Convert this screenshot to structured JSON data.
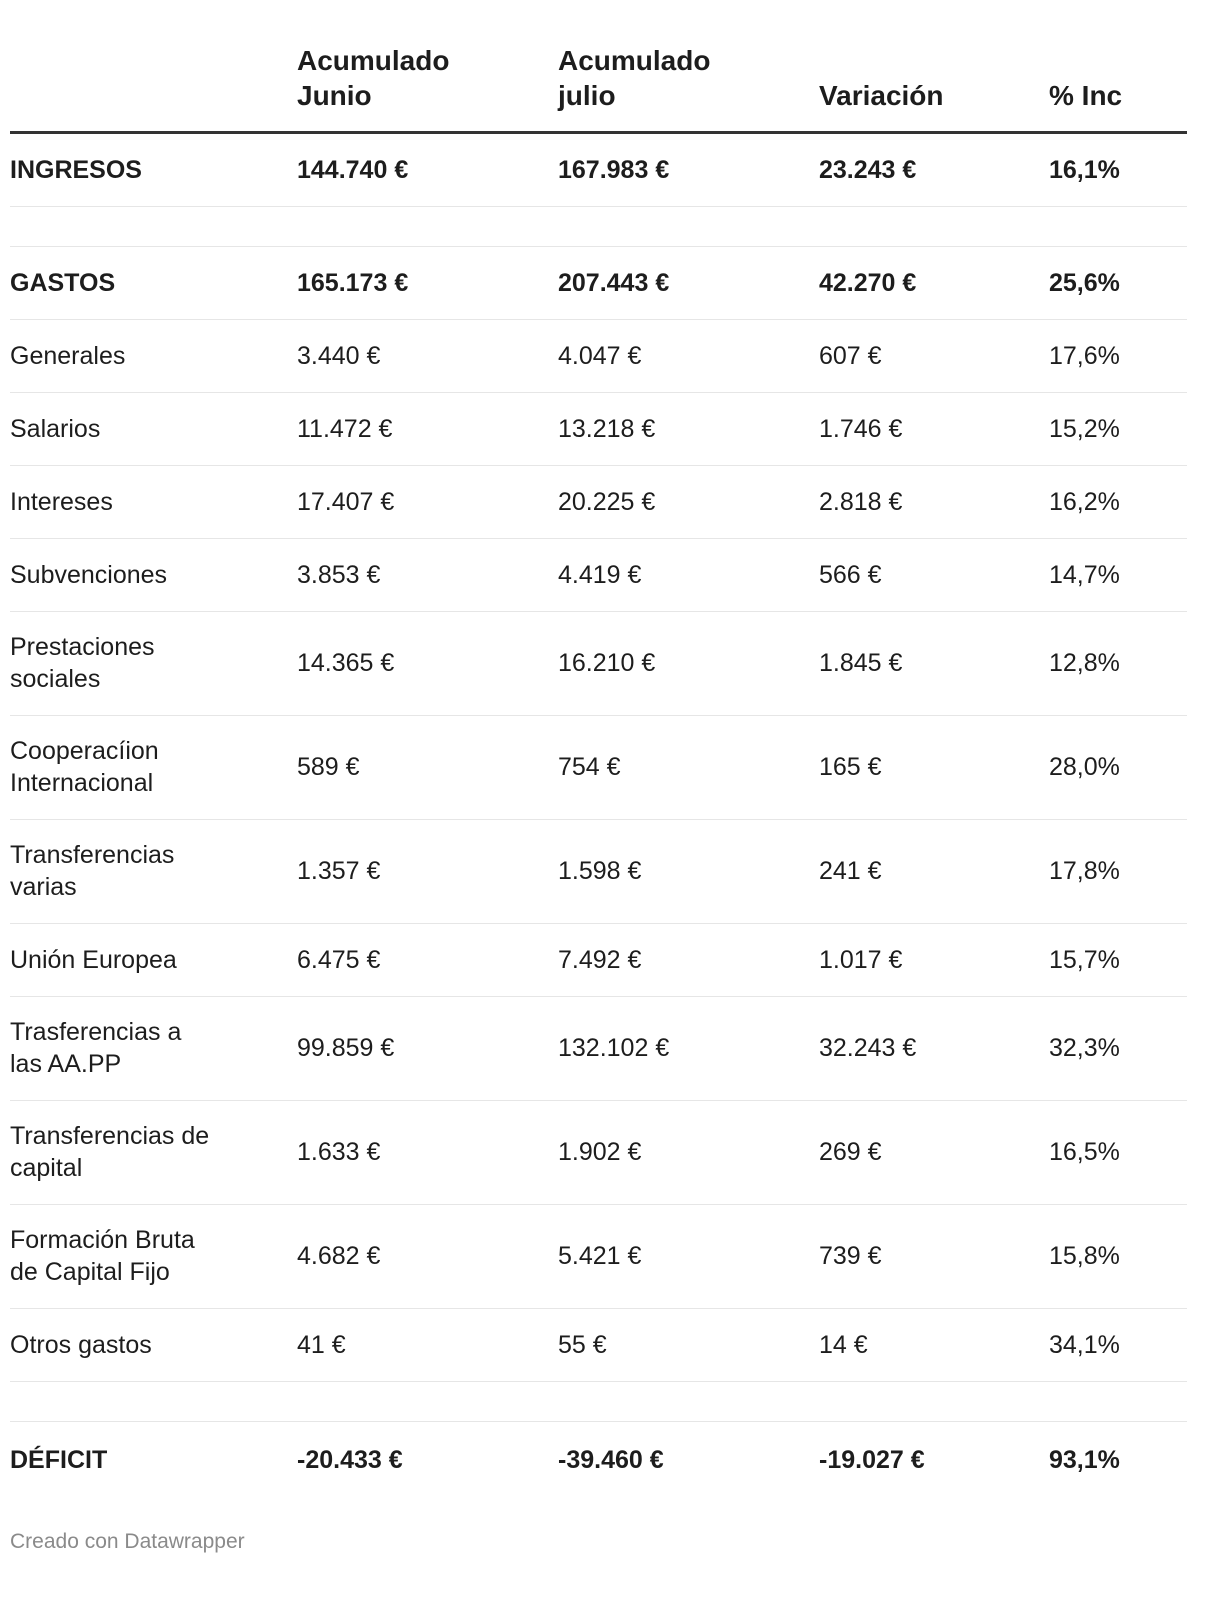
{
  "table": {
    "headers": {
      "col0": "",
      "col1_line1": "Acumulado",
      "col1_line2": "Junio",
      "col2_line1": "Acumulado",
      "col2_line2": "julio",
      "col3": "Variación",
      "col4": "% Inc"
    },
    "rows": [
      {
        "label": "INGRESOS",
        "junio": "144.740 €",
        "julio": "167.983 €",
        "variacion": "23.243 €",
        "inc": "16,1%"
      },
      {
        "label": "GASTOS",
        "junio": "165.173 €",
        "julio": "207.443 €",
        "variacion": "42.270 €",
        "inc": "25,6%"
      },
      {
        "label": "Generales",
        "junio": "3.440 €",
        "julio": "4.047 €",
        "variacion": "607 €",
        "inc": "17,6%"
      },
      {
        "label": "Salarios",
        "junio": "11.472 €",
        "julio": "13.218 €",
        "variacion": "1.746 €",
        "inc": "15,2%"
      },
      {
        "label": "Intereses",
        "junio": "17.407 €",
        "julio": "20.225 €",
        "variacion": "2.818 €",
        "inc": "16,2%"
      },
      {
        "label": "Subvenciones",
        "junio": "3.853 €",
        "julio": "4.419 €",
        "variacion": "566 €",
        "inc": "14,7%"
      },
      {
        "label_line1": "Prestaciones",
        "label_line2": "sociales",
        "junio": "14.365 €",
        "julio": "16.210 €",
        "variacion": "1.845 €",
        "inc": "12,8%"
      },
      {
        "label_line1": "Cooperacíion",
        "label_line2": "Internacional",
        "junio": "589 €",
        "julio": "754 €",
        "variacion": "165 €",
        "inc": "28,0%"
      },
      {
        "label_line1": "Transferencias",
        "label_line2": "varias",
        "junio": "1.357 €",
        "julio": "1.598 €",
        "variacion": "241 €",
        "inc": "17,8%"
      },
      {
        "label": "Unión Europea",
        "junio": "6.475 €",
        "julio": "7.492 €",
        "variacion": "1.017 €",
        "inc": "15,7%"
      },
      {
        "label_line1": "Trasferencias a",
        "label_line2": "las AA.PP",
        "junio": "99.859 €",
        "julio": "132.102 €",
        "variacion": "32.243 €",
        "inc": "32,3%"
      },
      {
        "label_line1": "Transferencias de",
        "label_line2": "capital",
        "junio": "1.633 €",
        "julio": "1.902 €",
        "variacion": "269 €",
        "inc": "16,5%"
      },
      {
        "label_line1": "Formación Bruta",
        "label_line2": "de Capital Fijo",
        "junio": "4.682 €",
        "julio": "5.421 €",
        "variacion": "739 €",
        "inc": "15,8%"
      },
      {
        "label": "Otros gastos",
        "junio": "41 €",
        "julio": "55 €",
        "variacion": "14 €",
        "inc": "34,1%"
      },
      {
        "label": "DÉFICIT",
        "junio": "-20.433 €",
        "julio": "-39.460 €",
        "variacion": "-19.027 €",
        "inc": "93,1%"
      }
    ]
  },
  "footer": {
    "credit": "Creado con Datawrapper"
  },
  "colors": {
    "text": "#1d1d1d",
    "header_rule": "#333333",
    "row_rule": "#e6e6e6",
    "footer_text": "#8a8a8a"
  }
}
